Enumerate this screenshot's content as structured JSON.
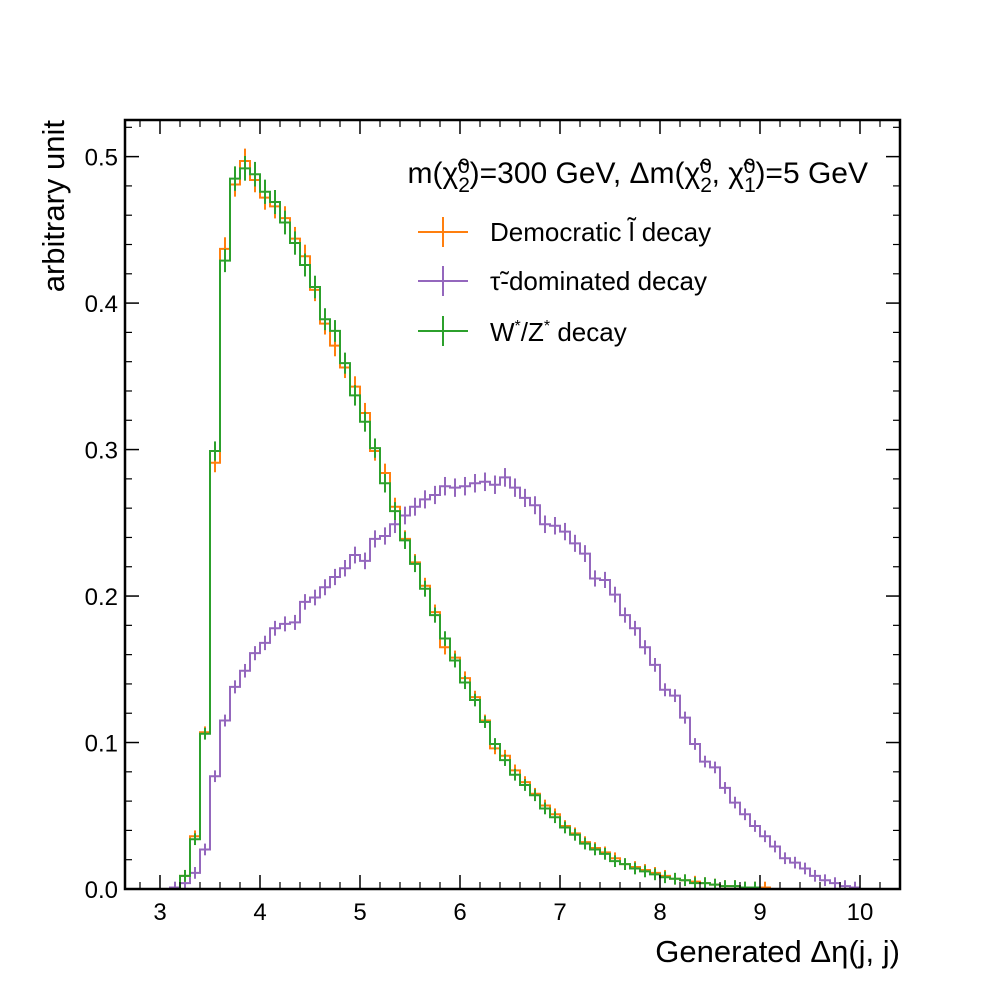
{
  "chart_data": {
    "type": "step",
    "xlabel": "Generated Δη(j, j)",
    "ylabel": "arbitrary unit",
    "xlim": [
      2.65,
      10.4
    ],
    "ylim": [
      0,
      0.525
    ],
    "x_ticks": [
      3,
      4,
      5,
      6,
      7,
      8,
      9,
      10
    ],
    "y_ticks": [
      0.0,
      0.1,
      0.2,
      0.3,
      0.4,
      0.5
    ],
    "x_tick_labels": [
      "3",
      "4",
      "5",
      "6",
      "7",
      "8",
      "9",
      "10"
    ],
    "y_tick_labels": [
      "0.0",
      "0.1",
      "0.2",
      "0.3",
      "0.4",
      "0.5"
    ],
    "header": {
      "line1": "m(χ̃",
      "sub_a": "2",
      "sup_a": "0",
      "mid": ")=300 GeV, Δm(χ̃",
      "sub_b": "2",
      "sup_b": "0",
      "comma": ", χ̃",
      "sub_c": "1",
      "sup_c": "0",
      "end": ")=5 GeV"
    },
    "legend_position": "upper-right",
    "bin_start": 3.0,
    "bin_width": 0.1,
    "series": [
      {
        "name": "Democratic l̃ decay",
        "name_parts": [
          "Democratic ",
          "l̃",
          " decay"
        ],
        "color": "#ff7f0e",
        "values": [
          0.0,
          0.0,
          0.009,
          0.036,
          0.107,
          0.291,
          0.437,
          0.481,
          0.497,
          0.484,
          0.472,
          0.466,
          0.458,
          0.444,
          0.432,
          0.409,
          0.386,
          0.371,
          0.356,
          0.343,
          0.325,
          0.299,
          0.284,
          0.261,
          0.239,
          0.223,
          0.207,
          0.189,
          0.165,
          0.158,
          0.144,
          0.131,
          0.115,
          0.096,
          0.091,
          0.081,
          0.073,
          0.065,
          0.057,
          0.051,
          0.043,
          0.038,
          0.032,
          0.028,
          0.025,
          0.021,
          0.017,
          0.015,
          0.013,
          0.011,
          0.009,
          0.007,
          0.006,
          0.005,
          0.004,
          0.003,
          0.002,
          0.002,
          0.001,
          0.001,
          0.001,
          0.0,
          0.0,
          0.0,
          0.0,
          0.0,
          0.0,
          0.0,
          0.0,
          0.0
        ]
      },
      {
        "name": "τ̃-dominated decay",
        "name_parts": [
          "τ̃",
          "-dominated decay"
        ],
        "color": "#9467bd",
        "values": [
          0.0,
          0.001,
          0.004,
          0.011,
          0.027,
          0.077,
          0.115,
          0.138,
          0.149,
          0.161,
          0.168,
          0.178,
          0.181,
          0.182,
          0.196,
          0.199,
          0.206,
          0.213,
          0.219,
          0.228,
          0.224,
          0.239,
          0.241,
          0.249,
          0.255,
          0.261,
          0.266,
          0.269,
          0.275,
          0.274,
          0.275,
          0.277,
          0.278,
          0.276,
          0.281,
          0.274,
          0.267,
          0.262,
          0.249,
          0.248,
          0.244,
          0.236,
          0.229,
          0.212,
          0.211,
          0.201,
          0.187,
          0.178,
          0.165,
          0.153,
          0.136,
          0.132,
          0.117,
          0.099,
          0.087,
          0.083,
          0.069,
          0.059,
          0.051,
          0.043,
          0.036,
          0.029,
          0.021,
          0.018,
          0.014,
          0.009,
          0.006,
          0.004,
          0.002,
          0.001
        ]
      },
      {
        "name": "W*/Z* decay",
        "name_parts": [
          "W",
          "*",
          "/Z",
          "*",
          " decay"
        ],
        "color": "#2ca02c",
        "values": [
          0.0,
          0.0,
          0.009,
          0.034,
          0.106,
          0.299,
          0.429,
          0.485,
          0.492,
          0.488,
          0.476,
          0.469,
          0.455,
          0.441,
          0.426,
          0.411,
          0.389,
          0.381,
          0.359,
          0.337,
          0.319,
          0.301,
          0.277,
          0.258,
          0.238,
          0.222,
          0.205,
          0.187,
          0.171,
          0.156,
          0.141,
          0.129,
          0.114,
          0.099,
          0.088,
          0.078,
          0.071,
          0.064,
          0.055,
          0.049,
          0.042,
          0.037,
          0.031,
          0.027,
          0.024,
          0.019,
          0.017,
          0.014,
          0.012,
          0.01,
          0.008,
          0.007,
          0.006,
          0.004,
          0.004,
          0.003,
          0.002,
          0.002,
          0.001,
          0.001,
          0.0,
          0.0,
          0.0,
          0.0,
          0.0,
          0.0,
          0.0,
          0.0,
          0.0,
          0.0
        ]
      }
    ]
  }
}
